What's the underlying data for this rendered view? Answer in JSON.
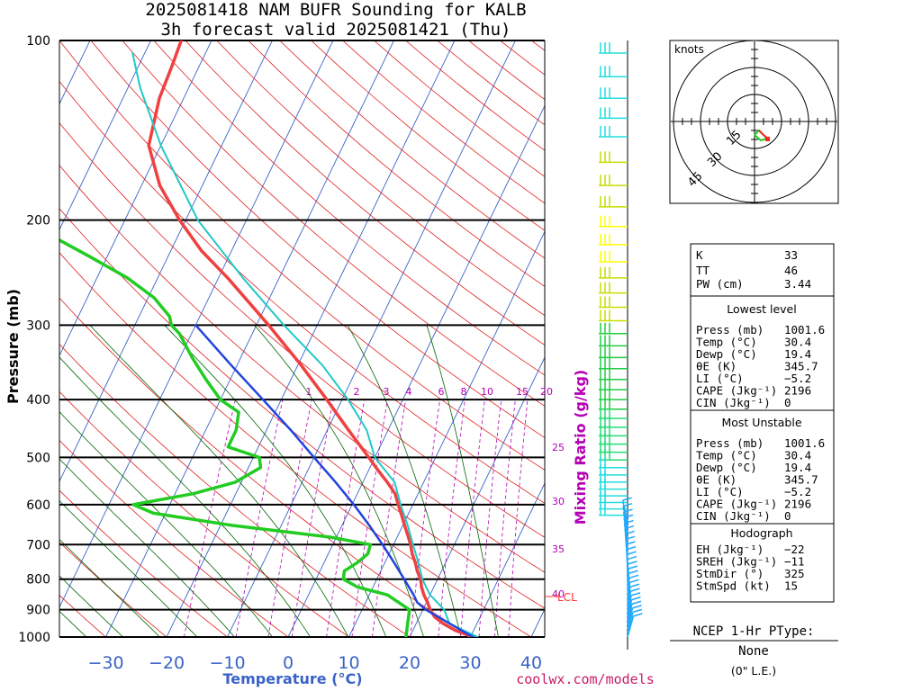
{
  "title": {
    "line1": "2025081418 NAM BUFR Sounding for KALB",
    "line2": "3h forecast valid 2025081421 (Thu)"
  },
  "y_axis_label": "Pressure (mb)",
  "x_axis_label": "Temperature (°C)",
  "mixing_ratio_label": "Mixing Ratio (g/kg)",
  "lcl_label": "LCL",
  "source_label": "coolwx.com/models",
  "colors": {
    "temperature": "#f04040",
    "dewpoint": "#22cc22",
    "virtual_temp": "#22c8c8",
    "parcel": "#2244dd",
    "isotherm": "#3a63c8",
    "dry_adiabat": "#e02020",
    "moist_adiabat": "#006400",
    "mixing_ratio": "#b400b4"
  },
  "chart_data": {
    "type": "line",
    "diagram": "skew-T log-P",
    "pressure_ticks": [
      "100",
      "200",
      "300",
      "400",
      "500",
      "600",
      "700",
      "800",
      "900",
      "1000"
    ],
    "temperature_ticks": [
      "−30",
      "−20",
      "−10",
      "0",
      "10",
      "20",
      "30",
      "40"
    ],
    "mixing_ratio_ticks": [
      "1",
      "2",
      "3",
      "4",
      "6",
      "8",
      "10",
      "15",
      "20",
      "25",
      "30",
      "35",
      "40"
    ],
    "xlim_at_1000mb": [
      -39,
      41
    ],
    "ylim_mb": [
      1000,
      100
    ],
    "series": [
      {
        "key": "temperature",
        "points": [
          [
            1000,
            30.4
          ],
          [
            975,
            27.0
          ],
          [
            950,
            24.5
          ],
          [
            925,
            22.5
          ],
          [
            900,
            21.2
          ],
          [
            875,
            20.2
          ],
          [
            850,
            19.0
          ],
          [
            825,
            18.0
          ],
          [
            800,
            17.2
          ],
          [
            775,
            16.0
          ],
          [
            750,
            15.0
          ],
          [
            725,
            13.8
          ],
          [
            700,
            12.8
          ],
          [
            675,
            11.6
          ],
          [
            650,
            10.3
          ],
          [
            625,
            9.0
          ],
          [
            600,
            7.6
          ],
          [
            575,
            6.2
          ],
          [
            550,
            4.0
          ],
          [
            525,
            1.5
          ],
          [
            500,
            -1.0
          ],
          [
            450,
            -6.5
          ],
          [
            400,
            -12.5
          ],
          [
            350,
            -19.5
          ],
          [
            300,
            -28.0
          ],
          [
            275,
            -33.0
          ],
          [
            250,
            -38.5
          ],
          [
            225,
            -45.0
          ],
          [
            200,
            -51.0
          ],
          [
            175,
            -57.0
          ],
          [
            150,
            -62.0
          ],
          [
            125,
            -64.0
          ],
          [
            110,
            -64.5
          ],
          [
            100,
            -65.0
          ]
        ]
      },
      {
        "key": "dewpoint",
        "points": [
          [
            1000,
            19.4
          ],
          [
            950,
            18.6
          ],
          [
            900,
            17.8
          ],
          [
            850,
            13.0
          ],
          [
            825,
            7.5
          ],
          [
            800,
            4.5
          ],
          [
            775,
            4.0
          ],
          [
            750,
            5.5
          ],
          [
            725,
            6.5
          ],
          [
            700,
            6.2
          ],
          [
            680,
            -1.0
          ],
          [
            650,
            -18.0
          ],
          [
            620,
            -32.0
          ],
          [
            600,
            -36.0
          ],
          [
            575,
            -27.0
          ],
          [
            550,
            -21.0
          ],
          [
            520,
            -18.0
          ],
          [
            500,
            -19.0
          ],
          [
            480,
            -25.0
          ],
          [
            450,
            -25.0
          ],
          [
            420,
            -26.0
          ],
          [
            400,
            -30.0
          ],
          [
            370,
            -34.0
          ],
          [
            340,
            -38.0
          ],
          [
            310,
            -42.0
          ],
          [
            300,
            -44.0
          ],
          [
            290,
            -45.0
          ],
          [
            270,
            -49.0
          ],
          [
            250,
            -55.0
          ],
          [
            230,
            -63.0
          ],
          [
            210,
            -72.0
          ],
          [
            200,
            -77.0
          ],
          [
            185,
            -76.0
          ],
          [
            170,
            -78.0
          ]
        ]
      },
      {
        "key": "virtual_temp",
        "points": [
          [
            1000,
            31.2
          ],
          [
            950,
            25.5
          ],
          [
            900,
            23.5
          ],
          [
            875,
            21.8
          ],
          [
            850,
            20.0
          ],
          [
            800,
            17.5
          ],
          [
            750,
            15.5
          ],
          [
            700,
            13.2
          ],
          [
            650,
            10.8
          ],
          [
            600,
            8.0
          ],
          [
            550,
            5.2
          ],
          [
            500,
            0.0
          ],
          [
            450,
            -3.5
          ],
          [
            400,
            -9.0
          ],
          [
            350,
            -16.0
          ],
          [
            300,
            -25.5
          ],
          [
            250,
            -36.0
          ],
          [
            200,
            -48.0
          ],
          [
            150,
            -60.0
          ],
          [
            120,
            -68.0
          ],
          [
            105,
            -72.0
          ]
        ]
      },
      {
        "key": "parcel",
        "points": [
          [
            1000,
            30.4
          ],
          [
            900,
            20.5
          ],
          [
            875,
            18.5
          ],
          [
            850,
            17.3
          ],
          [
            800,
            14.5
          ],
          [
            750,
            11.5
          ],
          [
            700,
            8.2
          ],
          [
            650,
            4.5
          ],
          [
            600,
            0.3
          ],
          [
            550,
            -4.5
          ],
          [
            500,
            -10.0
          ],
          [
            450,
            -16.0
          ],
          [
            400,
            -23.0
          ],
          [
            350,
            -31.0
          ],
          [
            300,
            -40.0
          ]
        ]
      }
    ],
    "wind_barbs": {
      "levels_mb": [
        105,
        115,
        125,
        135,
        145,
        160,
        175,
        190,
        205,
        220,
        235,
        250,
        265,
        280,
        295,
        310,
        325,
        340,
        355,
        370,
        385,
        400,
        415,
        430,
        445,
        460,
        475,
        490,
        505,
        520,
        535,
        550,
        565,
        580,
        595,
        610,
        625,
        640,
        655,
        670,
        685,
        700,
        715,
        730,
        745,
        760,
        775,
        790,
        805,
        820,
        835,
        850,
        865,
        880,
        895,
        910,
        925,
        940,
        955,
        970,
        985,
        1000
      ],
      "colors_by_band": [
        "#22dddd",
        "#22cc88",
        "#c8dd00",
        "#ffff00",
        "#22cc44",
        "#22dd77",
        "#22dddd",
        "#22aaff"
      ]
    },
    "hodograph": {
      "label": "knots",
      "ring_labels": [
        "15",
        "30",
        "45"
      ]
    }
  },
  "indices": [
    {
      "label": "K",
      "value": "33"
    },
    {
      "label": "TT",
      "value": "46"
    },
    {
      "label": "PW (cm)",
      "value": "3.44"
    }
  ],
  "lowest_level": {
    "header": "Lowest level",
    "rows": [
      {
        "label": "Press (mb)",
        "value": "1001.6"
      },
      {
        "label": "Temp (°C)",
        "value": "30.4"
      },
      {
        "label": "Dewp (°C)",
        "value": "19.4"
      },
      {
        "label": "θE (K)",
        "value": "345.7"
      },
      {
        "label": "LI (°C)",
        "value": "−5.2"
      },
      {
        "label": "CAPE (Jkg⁻¹)",
        "value": "2196"
      },
      {
        "label": "CIN (Jkg⁻¹)",
        "value": "0"
      }
    ]
  },
  "most_unstable": {
    "header": "Most Unstable",
    "rows": [
      {
        "label": "Press (mb)",
        "value": "1001.6"
      },
      {
        "label": "Temp (°C)",
        "value": "30.4"
      },
      {
        "label": "Dewp (°C)",
        "value": "19.4"
      },
      {
        "label": "θE (K)",
        "value": "345.7"
      },
      {
        "label": "LI (°C)",
        "value": "−5.2"
      },
      {
        "label": "CAPE (Jkg⁻¹)",
        "value": "2196"
      },
      {
        "label": "CIN (Jkg⁻¹)",
        "value": "0"
      }
    ]
  },
  "hodograph_stats": {
    "header": "Hodograph",
    "rows": [
      {
        "label": "EH (Jkg⁻¹)",
        "value": "−22"
      },
      {
        "label": "SREH (Jkg⁻¹)",
        "value": "−11"
      },
      {
        "label": "StmDir (°)",
        "value": "325"
      },
      {
        "label": "StmSpd (kt)",
        "value": "15"
      }
    ]
  },
  "ptype": {
    "title": "NCEP 1-Hr PType:",
    "value": "None",
    "note": "(0\" L.E.)"
  }
}
